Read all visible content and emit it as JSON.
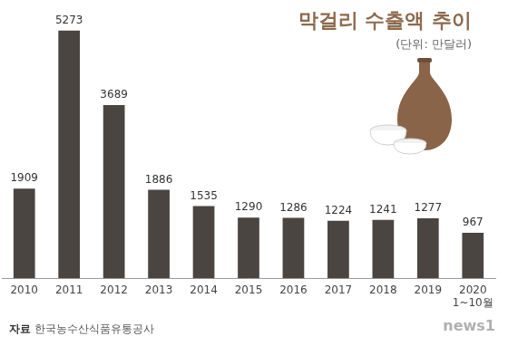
{
  "chart_data": {
    "type": "bar",
    "title": "막걸리 수출액 추이",
    "subtitle": "(단위: 만달러)",
    "source": "자료 한국농수산식품유통공사",
    "watermark": "news1",
    "categories": [
      "2010",
      "2011",
      "2012",
      "2013",
      "2014",
      "2015",
      "2016",
      "2017",
      "2018",
      "2019",
      "2020"
    ],
    "values": [
      1909,
      5273,
      3689,
      1886,
      1535,
      1290,
      1286,
      1224,
      1241,
      1277,
      967
    ],
    "annotations": [
      {
        "category": "2020",
        "text": "1~10월"
      }
    ],
    "color": "#4b4542",
    "ylim": [
      0,
      5500
    ],
    "grid": false,
    "data_labels": true,
    "tick_labels": "x"
  }
}
